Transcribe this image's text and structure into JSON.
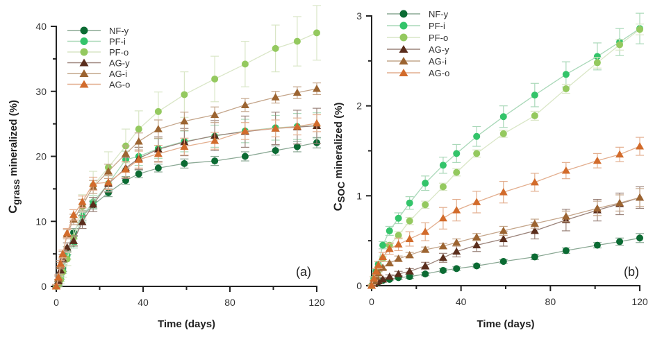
{
  "chart_data": [
    {
      "type": "line",
      "panel_label": "(a)",
      "title": "",
      "xlabel": "Time (days)",
      "ylabel": "Cgrass mineralized (%)",
      "ylabel_main": "C",
      "ylabel_sub": "grass",
      "ylabel_rest": " mineralized (%)",
      "xlim": [
        0,
        120
      ],
      "ylim": [
        0,
        40
      ],
      "xticks": [
        0,
        40,
        80,
        120
      ],
      "xtick_labels": [
        "0",
        "40",
        "80",
        "120"
      ],
      "xminor": [
        20,
        60,
        100
      ],
      "yticks": [
        0,
        10,
        20,
        30,
        40
      ],
      "ytick_labels": [
        "0",
        "10",
        "20",
        "30",
        "40"
      ],
      "yminor": [
        5,
        15,
        25,
        35
      ],
      "grid": false,
      "legend_position": "top-left",
      "x": [
        0,
        1,
        2,
        3,
        5,
        8,
        12,
        17,
        24,
        32,
        38,
        47,
        59,
        73,
        87,
        101,
        111,
        120
      ],
      "series": [
        {
          "name": "NF-y",
          "marker": "circle",
          "color": "#0b6b33",
          "line": "#8aa894",
          "values": [
            0,
            0.5,
            1.5,
            2.8,
            5.5,
            8.3,
            10.8,
            12.5,
            14.4,
            16.3,
            17.3,
            18.2,
            18.9,
            19.3,
            20.0,
            20.9,
            21.5,
            22.1
          ],
          "errors": [
            0.2,
            0.3,
            0.4,
            0.5,
            0.6,
            0.6,
            0.6,
            0.6,
            0.6,
            0.6,
            0.6,
            0.6,
            0.7,
            0.7,
            0.7,
            0.7,
            0.8,
            0.8
          ]
        },
        {
          "name": "PF-i",
          "marker": "circle",
          "color": "#33c46a",
          "line": "#a9d8b8",
          "values": [
            0,
            0.4,
            1.2,
            2.5,
            4.8,
            6.6,
            10.8,
            13.0,
            15.8,
            19.5,
            20.0,
            21.2,
            22.3,
            23.1,
            23.9,
            24.4,
            24.6,
            24.7
          ],
          "errors": [
            0.2,
            0.3,
            0.4,
            0.5,
            0.6,
            0.7,
            0.9,
            1.0,
            1.2,
            1.3,
            1.4,
            1.5,
            1.6,
            1.7,
            1.8,
            1.9,
            2.0,
            2.0
          ]
        },
        {
          "name": "PF-o",
          "marker": "circle",
          "color": "#94c95f",
          "line": "#d9e6c6",
          "values": [
            0,
            0.3,
            1.0,
            2.2,
            4.2,
            7.5,
            12.3,
            15.5,
            18.3,
            21.6,
            24.2,
            26.9,
            29.5,
            31.9,
            34.2,
            36.6,
            37.7,
            39.0
          ],
          "errors": [
            0.3,
            0.4,
            0.6,
            0.8,
            1.0,
            1.2,
            1.8,
            2.2,
            2.4,
            2.6,
            2.8,
            3.0,
            3.5,
            3.5,
            3.5,
            3.6,
            3.8,
            4.2
          ]
        },
        {
          "name": "AG-y",
          "marker": "triangle",
          "color": "#5a2d1c",
          "line": "#9a8279",
          "values": [
            0,
            0.8,
            2.5,
            4.3,
            6.0,
            7.0,
            9.9,
            12.6,
            15.8,
            18.2,
            19.7,
            21.1,
            22.2,
            23.2,
            23.8,
            24.3,
            24.5,
            24.7
          ],
          "errors": [
            0.2,
            0.3,
            0.5,
            0.6,
            0.7,
            0.8,
            1.0,
            1.1,
            1.3,
            1.6,
            1.7,
            1.9,
            2.1,
            2.3,
            2.4,
            2.5,
            2.6,
            2.7
          ]
        },
        {
          "name": "AG-i",
          "marker": "triangle",
          "color": "#9c6431",
          "line": "#c4a58a",
          "values": [
            0,
            1.2,
            3.2,
            4.8,
            8.0,
            10.3,
            12.5,
            15.3,
            17.7,
            20.4,
            22.3,
            24.2,
            25.4,
            26.4,
            27.9,
            29.1,
            29.8,
            30.4
          ],
          "errors": [
            0.3,
            0.4,
            0.5,
            0.6,
            0.7,
            0.8,
            0.9,
            1.0,
            1.1,
            1.2,
            1.3,
            1.4,
            1.4,
            1.2,
            1.0,
            0.9,
            0.9,
            0.9
          ]
        },
        {
          "name": "AG-o",
          "marker": "triangle",
          "color": "#d26b2b",
          "line": "#e3ae8e",
          "values": [
            0,
            1.4,
            3.5,
            5.0,
            8.2,
            11.0,
            13.0,
            15.8,
            16.0,
            18.0,
            19.5,
            20.4,
            21.5,
            22.4,
            23.9,
            24.3,
            24.6,
            25.1
          ],
          "errors": [
            0.3,
            0.4,
            0.5,
            0.6,
            0.7,
            0.8,
            0.9,
            1.0,
            1.1,
            1.2,
            1.3,
            1.3,
            1.3,
            1.3,
            1.3,
            1.3,
            1.3,
            1.3
          ]
        }
      ]
    },
    {
      "type": "line",
      "panel_label": "(b)",
      "title": "",
      "xlabel": "Time (days)",
      "ylabel": "CSOC mineralized (%)",
      "ylabel_main": "C",
      "ylabel_sub": "SOC",
      "ylabel_rest": " mineralized (%)",
      "xlim": [
        0,
        120
      ],
      "ylim": [
        0,
        3
      ],
      "xticks": [
        0,
        40,
        80,
        120
      ],
      "xtick_labels": [
        "0",
        "40",
        "80",
        "120"
      ],
      "xminor": [
        20,
        60,
        100
      ],
      "yticks": [
        0,
        1,
        2,
        3
      ],
      "ytick_labels": [
        "0",
        "1",
        "2",
        "3"
      ],
      "yminor": [
        0.5,
        1.5,
        2.5
      ],
      "grid": false,
      "legend_position": "top-left",
      "x": [
        0,
        1,
        2,
        3,
        5,
        8,
        12,
        17,
        24,
        32,
        38,
        47,
        59,
        73,
        87,
        101,
        111,
        120
      ],
      "series": [
        {
          "name": "NF-y",
          "marker": "circle",
          "color": "#0b6b33",
          "line": "#8aa894",
          "values": [
            0,
            0.02,
            0.03,
            0.04,
            0.06,
            0.07,
            0.09,
            0.1,
            0.13,
            0.17,
            0.19,
            0.22,
            0.27,
            0.32,
            0.39,
            0.45,
            0.49,
            0.53
          ],
          "errors": [
            0.01,
            0.01,
            0.01,
            0.01,
            0.01,
            0.01,
            0.02,
            0.02,
            0.02,
            0.02,
            0.02,
            0.02,
            0.02,
            0.03,
            0.03,
            0.03,
            0.04,
            0.05
          ]
        },
        {
          "name": "PF-i",
          "marker": "circle",
          "color": "#33c46a",
          "line": "#a9d8b8",
          "values": [
            0,
            0.08,
            0.16,
            0.24,
            0.45,
            0.61,
            0.75,
            0.92,
            1.14,
            1.34,
            1.47,
            1.66,
            1.88,
            2.12,
            2.35,
            2.55,
            2.71,
            2.86
          ],
          "errors": [
            0.01,
            0.02,
            0.02,
            0.03,
            0.04,
            0.05,
            0.06,
            0.07,
            0.08,
            0.09,
            0.1,
            0.11,
            0.12,
            0.13,
            0.14,
            0.15,
            0.15,
            0.17
          ]
        },
        {
          "name": "PF-o",
          "marker": "circle",
          "color": "#94c95f",
          "line": "#d9e6c6",
          "values": [
            0,
            0.05,
            0.11,
            0.17,
            0.3,
            0.45,
            0.56,
            0.72,
            0.9,
            1.1,
            1.26,
            1.47,
            1.69,
            1.89,
            2.19,
            2.48,
            2.68,
            2.85
          ],
          "errors": [
            0.01,
            0.01,
            0.02,
            0.02,
            0.03,
            0.03,
            0.04,
            0.04,
            0.04,
            0.04,
            0.04,
            0.04,
            0.04,
            0.05,
            0.05,
            0.06,
            0.06,
            0.06
          ]
        },
        {
          "name": "AG-y",
          "marker": "triangle",
          "color": "#5a2d1c",
          "line": "#9a8279",
          "values": [
            0,
            0.02,
            0.04,
            0.05,
            0.07,
            0.1,
            0.13,
            0.16,
            0.22,
            0.31,
            0.38,
            0.45,
            0.52,
            0.61,
            0.73,
            0.84,
            0.91,
            0.98
          ],
          "errors": [
            0.01,
            0.01,
            0.01,
            0.02,
            0.02,
            0.02,
            0.03,
            0.03,
            0.04,
            0.05,
            0.06,
            0.07,
            0.08,
            0.09,
            0.12,
            0.12,
            0.12,
            0.12
          ]
        },
        {
          "name": "AG-i",
          "marker": "triangle",
          "color": "#9c6431",
          "line": "#c4a58a",
          "values": [
            0,
            0.05,
            0.1,
            0.14,
            0.2,
            0.25,
            0.3,
            0.34,
            0.4,
            0.44,
            0.48,
            0.54,
            0.61,
            0.69,
            0.77,
            0.86,
            0.92,
            0.98
          ],
          "errors": [
            0.01,
            0.01,
            0.02,
            0.02,
            0.02,
            0.02,
            0.03,
            0.03,
            0.03,
            0.03,
            0.04,
            0.04,
            0.05,
            0.05,
            0.06,
            0.08,
            0.09,
            0.1
          ]
        },
        {
          "name": "AG-o",
          "marker": "triangle",
          "color": "#d26b2b",
          "line": "#e3ae8e",
          "values": [
            0,
            0.08,
            0.16,
            0.23,
            0.32,
            0.41,
            0.46,
            0.52,
            0.6,
            0.75,
            0.84,
            0.93,
            1.04,
            1.15,
            1.28,
            1.39,
            1.46,
            1.55
          ],
          "errors": [
            0.01,
            0.02,
            0.03,
            0.04,
            0.05,
            0.06,
            0.07,
            0.08,
            0.1,
            0.12,
            0.12,
            0.12,
            0.12,
            0.1,
            0.09,
            0.08,
            0.08,
            0.1
          ]
        }
      ]
    }
  ]
}
